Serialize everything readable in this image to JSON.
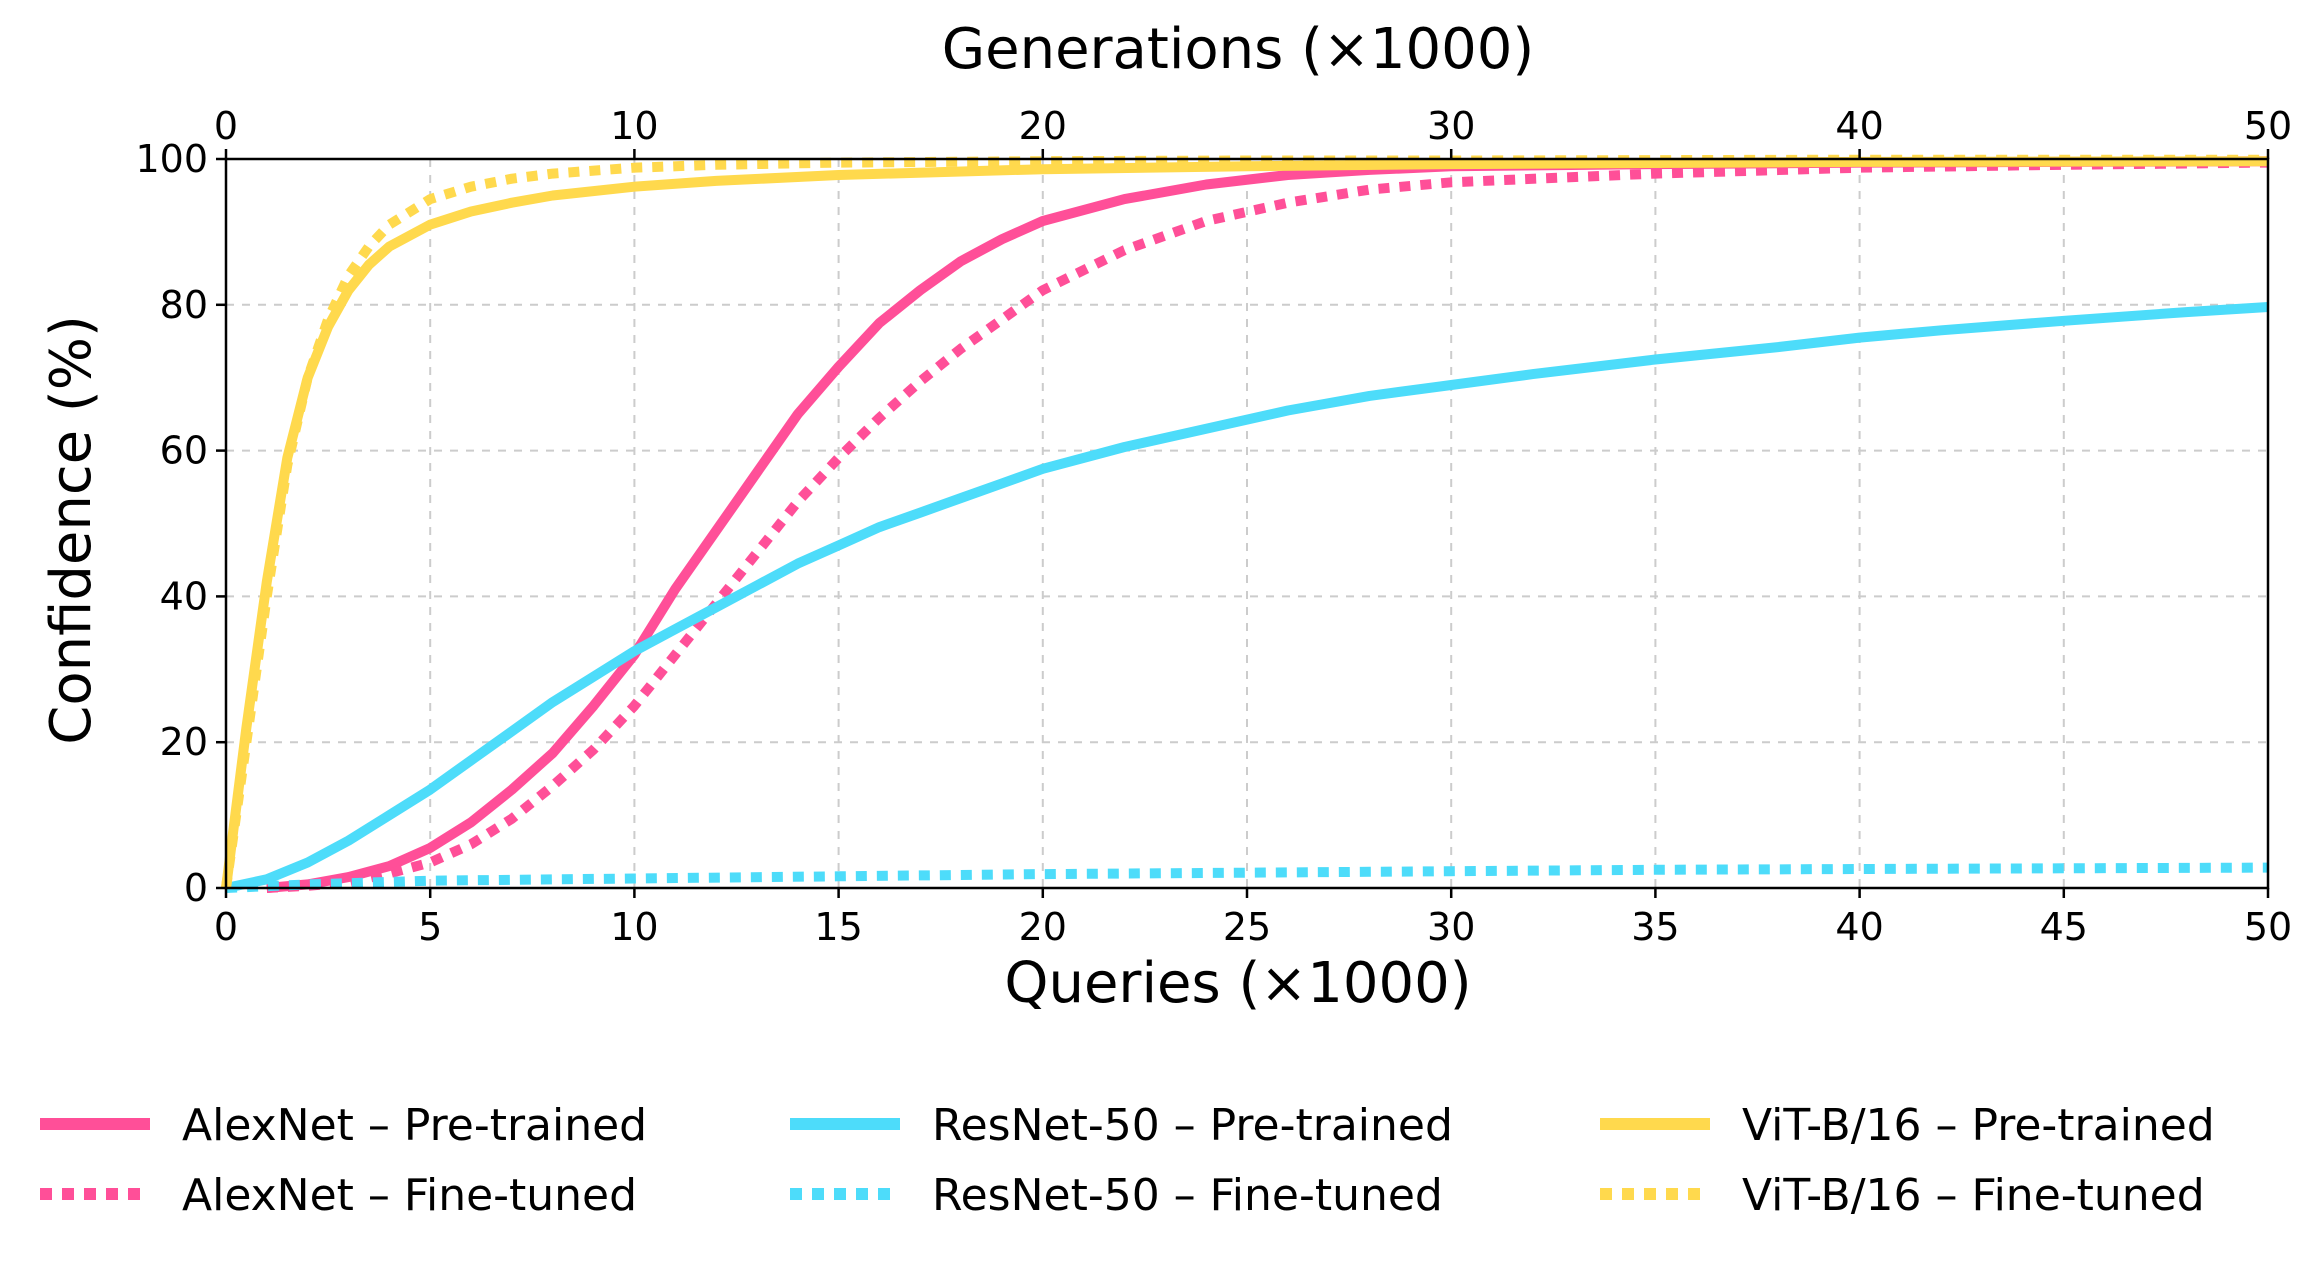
{
  "chart_data": {
    "type": "line",
    "title": "",
    "xlabel": "Queries (×1000)",
    "x2label": "Generations (×1000)",
    "ylabel": "Confidence (%)",
    "xlim": [
      0,
      50
    ],
    "ylim": [
      0,
      100
    ],
    "grid": true,
    "legend_position": "bottom",
    "xticks": [
      "0",
      "5",
      "10",
      "15",
      "20",
      "25",
      "30",
      "35",
      "40",
      "45",
      "50"
    ],
    "xtick_values": [
      0,
      5,
      10,
      15,
      20,
      25,
      30,
      35,
      40,
      45,
      50
    ],
    "x2ticks": [
      "0",
      "10",
      "20",
      "30",
      "40",
      "50"
    ],
    "x2tick_values": [
      0,
      10,
      20,
      30,
      40,
      50
    ],
    "yticks": [
      "0",
      "20",
      "40",
      "60",
      "80",
      "100"
    ],
    "ytick_values": [
      0,
      20,
      40,
      60,
      80,
      100
    ],
    "series": [
      {
        "name": "AlexNet – Pre-trained",
        "color": "#ff4f98",
        "style": "solid",
        "x": [
          1,
          2,
          3,
          4,
          5,
          6,
          7,
          8,
          9,
          10,
          11,
          12,
          13,
          14,
          15,
          16,
          17,
          18,
          19,
          20,
          22,
          24,
          26,
          28,
          30,
          35,
          40,
          45,
          50
        ],
        "y": [
          0,
          0.5,
          1.5,
          3,
          5.5,
          9,
          13.5,
          18.5,
          25,
          32,
          41,
          49,
          57,
          65,
          71.5,
          77.5,
          82,
          86,
          89,
          91.5,
          94.5,
          96.5,
          97.8,
          98.5,
          99,
          99.3,
          99.5,
          99.6,
          99.7
        ]
      },
      {
        "name": "AlexNet – Fine-tuned",
        "color": "#ff4f98",
        "style": "dotted",
        "x": [
          1,
          2,
          3,
          4,
          5,
          6,
          7,
          8,
          9,
          10,
          11,
          12,
          13,
          14,
          15,
          16,
          17,
          18,
          19,
          20,
          22,
          24,
          26,
          28,
          30,
          35,
          40,
          45,
          50
        ],
        "y": [
          0,
          0.3,
          0.8,
          2,
          3.5,
          6,
          9.5,
          14,
          19,
          25,
          32,
          39,
          46,
          53,
          59,
          64.5,
          69.5,
          74,
          78,
          82,
          87.5,
          91.5,
          94,
          95.8,
          96.8,
          98,
          98.8,
          99.2,
          99.5
        ]
      },
      {
        "name": "ResNet-50 – Pre-trained",
        "color": "#4ddcfa",
        "style": "solid",
        "x": [
          0,
          1,
          2,
          3,
          4,
          5,
          6,
          7,
          8,
          9,
          10,
          11,
          12,
          13,
          14,
          15,
          16,
          17,
          18,
          19,
          20,
          22,
          24,
          26,
          28,
          30,
          32,
          35,
          38,
          40,
          42,
          45,
          48,
          50
        ],
        "y": [
          0,
          1.2,
          3.5,
          6.5,
          10,
          13.5,
          17.5,
          21.5,
          25.5,
          29,
          32.5,
          35.5,
          38.5,
          41.5,
          44.5,
          47,
          49.5,
          51.5,
          53.5,
          55.5,
          57.5,
          60.5,
          63,
          65.5,
          67.5,
          69,
          70.5,
          72.5,
          74.2,
          75.5,
          76.5,
          77.8,
          79,
          79.7
        ]
      },
      {
        "name": "ResNet-50 – Fine-tuned",
        "color": "#4ddcfa",
        "style": "dotted",
        "x": [
          0,
          2,
          5,
          10,
          15,
          20,
          25,
          30,
          35,
          40,
          45,
          50
        ],
        "y": [
          0,
          0.5,
          1,
          1.3,
          1.6,
          1.9,
          2.1,
          2.3,
          2.5,
          2.6,
          2.7,
          2.8
        ]
      },
      {
        "name": "ViT-B/16 – Pre-trained",
        "color": "#ffd94d",
        "style": "solid",
        "x": [
          0,
          0.5,
          1,
          1.5,
          2,
          2.5,
          3,
          3.5,
          4,
          5,
          6,
          7,
          8,
          10,
          12,
          15,
          20,
          25,
          30,
          40,
          50
        ],
        "y": [
          0,
          22,
          42,
          59,
          70,
          77,
          82,
          85.5,
          88,
          91,
          92.8,
          94,
          95,
          96.2,
          97,
          97.8,
          98.6,
          99,
          99.3,
          99.6,
          99.7
        ]
      },
      {
        "name": "ViT-B/16 – Fine-tuned",
        "color": "#ffd94d",
        "style": "dotted",
        "x": [
          0,
          0.5,
          1,
          1.5,
          2,
          2.5,
          3,
          3.5,
          4,
          5,
          6,
          7,
          8,
          10,
          12,
          15,
          20,
          25,
          30,
          40,
          50
        ],
        "y": [
          0,
          20,
          40,
          58,
          70,
          78,
          84,
          88,
          91,
          94.5,
          96.2,
          97.3,
          98,
          98.8,
          99.2,
          99.5,
          99.7,
          99.8,
          99.8,
          99.9,
          99.9
        ]
      }
    ]
  }
}
